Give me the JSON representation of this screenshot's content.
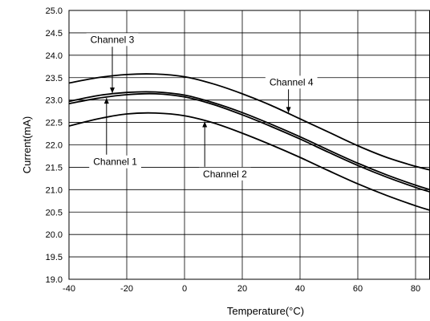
{
  "chart_data": {
    "type": "line",
    "xlabel": "Temperature(°C)",
    "ylabel": "Current(mA)",
    "xlim": [
      -40,
      85
    ],
    "ylim": [
      19.0,
      25.0
    ],
    "x_ticks": [
      -40,
      -20,
      0,
      20,
      40,
      60,
      80
    ],
    "x_tick_labels": [
      "-40",
      "-20",
      "0",
      "20",
      "40",
      "60",
      "80"
    ],
    "y_ticks": [
      19.0,
      19.5,
      20.0,
      20.5,
      21.0,
      21.5,
      22.0,
      22.5,
      23.0,
      23.5,
      24.0,
      24.5,
      25.0
    ],
    "y_tick_labels": [
      "19.0",
      "19.5",
      "20.0",
      "20.5",
      "21.0",
      "21.5",
      "22.0",
      "22.5",
      "23.0",
      "23.5",
      "24.0",
      "24.5",
      "25.0"
    ],
    "grid": true,
    "x": [
      -40,
      -30,
      -20,
      -10,
      0,
      10,
      20,
      30,
      40,
      50,
      60,
      70,
      80,
      85
    ],
    "series": [
      {
        "name": "Channel 4",
        "values": [
          23.38,
          23.5,
          23.57,
          23.58,
          23.52,
          23.36,
          23.14,
          22.88,
          22.58,
          22.28,
          21.98,
          21.72,
          21.52,
          21.44
        ]
      },
      {
        "name": "Channel 3",
        "values": [
          22.97,
          23.1,
          23.17,
          23.18,
          23.11,
          22.94,
          22.72,
          22.46,
          22.18,
          21.88,
          21.59,
          21.33,
          21.1,
          21.0
        ]
      },
      {
        "name": "Channel 1",
        "values": [
          22.92,
          23.04,
          23.12,
          23.14,
          23.07,
          22.9,
          22.67,
          22.41,
          22.13,
          21.83,
          21.54,
          21.28,
          21.05,
          20.95
        ]
      },
      {
        "name": "Channel 2",
        "values": [
          22.42,
          22.58,
          22.69,
          22.71,
          22.65,
          22.49,
          22.26,
          22.0,
          21.72,
          21.42,
          21.13,
          20.87,
          20.64,
          20.54
        ]
      }
    ],
    "annotations": [
      {
        "text": "Channel 3",
        "target_series": "Channel 3",
        "x": -25,
        "y": 24.35,
        "point_x": -25
      },
      {
        "text": "Channel 4",
        "target_series": "Channel 4",
        "x": 37,
        "y": 23.4,
        "point_x": 36
      },
      {
        "text": "Channel 1",
        "target_series": "Channel 1",
        "x": -24,
        "y": 21.62,
        "point_x": -27
      },
      {
        "text": "Channel 2",
        "target_series": "Channel 2",
        "x": 14,
        "y": 21.35,
        "point_x": 7
      }
    ]
  }
}
